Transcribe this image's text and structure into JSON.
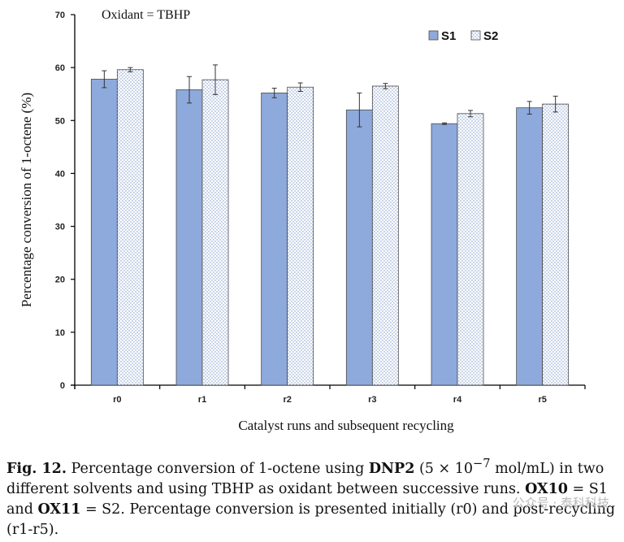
{
  "chart_data": {
    "type": "bar",
    "annotation": "Oxidant = TBHP",
    "categories": [
      "r0",
      "r1",
      "r2",
      "r3",
      "r4",
      "r5"
    ],
    "series": [
      {
        "name": "S1",
        "values": [
          57.8,
          55.8,
          55.2,
          52.0,
          49.4,
          52.4
        ],
        "errors": [
          1.6,
          2.5,
          0.9,
          3.2,
          0.15,
          1.2
        ],
        "fill": "#8ea9db",
        "pattern": "solid"
      },
      {
        "name": "S2",
        "values": [
          59.6,
          57.7,
          56.3,
          56.5,
          51.3,
          53.1
        ],
        "errors": [
          0.4,
          2.8,
          0.8,
          0.5,
          0.6,
          1.5
        ],
        "fill": "#ffffff",
        "pattern": "dotted"
      }
    ],
    "xlabel": "Catalyst runs and subsequent recycling",
    "ylabel": "Percentage conversion of 1-octene (%)",
    "ylim": [
      0,
      70
    ],
    "yticks": [
      0,
      10,
      20,
      30,
      40,
      50,
      60,
      70
    ],
    "grid": false,
    "legend_position": "top-right"
  },
  "caption": {
    "fig_label": "Fig. 12.",
    "t1": "Percentage conversion of 1-octene using",
    "compound": "DNP2",
    "t2": "(5 × 10",
    "exponent": "−7",
    "t3": "mol/mL) in two different solvents and using TBHP as oxidant between successive runs.",
    "ox1": "OX10",
    "t4": "= S1 and",
    "ox2": "OX11",
    "t5": "= S2. Percentage conversion is presented initially (r0) and post-recycling (r1-r5)."
  },
  "watermark": "公众号 · 泰科科技"
}
